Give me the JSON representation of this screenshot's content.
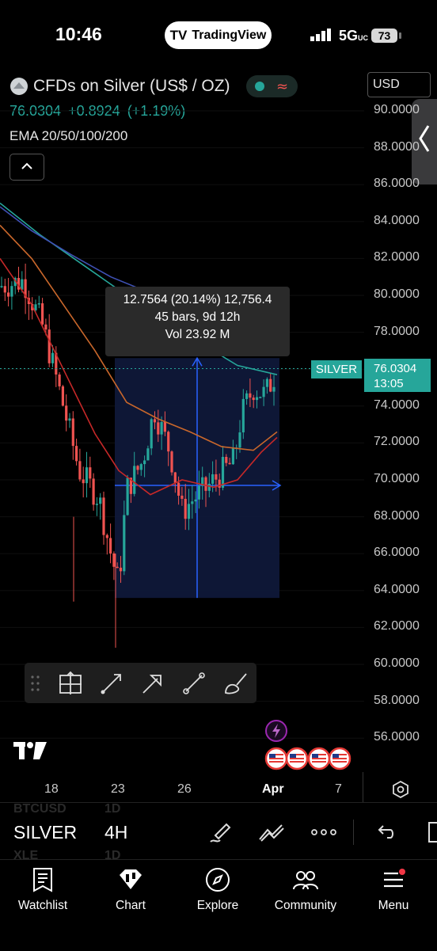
{
  "status_bar": {
    "time": "10:46",
    "network": "5G",
    "network_suffix": "UC",
    "battery": "73",
    "app_pill": "TradingView"
  },
  "header": {
    "symbol_title": "CFDs on Silver (US$ / OZ)",
    "last_price": "76.0304",
    "change": "+0.8924",
    "change_pct": "(+1.19%)",
    "indicator": "EMA 20/50/100/200",
    "currency": "USD"
  },
  "price_axis": {
    "ticks": [
      "90.0000",
      "88.0000",
      "86.0000",
      "84.0000",
      "82.0000",
      "80.0000",
      "78.0000",
      "76.0000",
      "74.0000",
      "72.0000",
      "70.0000",
      "68.0000",
      "66.0000",
      "64.0000",
      "62.0000",
      "60.0000",
      "58.0000",
      "56.0000"
    ],
    "last_label": "SILVER",
    "last_value": "76.0304",
    "countdown": "13:05"
  },
  "measure": {
    "line1": "12.7564 (20.14%) 12,756.4",
    "line2": "45 bars, 9d 12h",
    "line3": "Vol 23.92 M"
  },
  "time_axis": {
    "ticks": [
      "18",
      "23",
      "26",
      "Apr",
      "7"
    ]
  },
  "symbol_bar": {
    "symbol": "SILVER",
    "timeframe": "4H",
    "ghost_top": "BTCUSD",
    "ghost_top_tf": "1D",
    "ghost_bottom": "XLE",
    "ghost_bottom_tf": "1D"
  },
  "nav": {
    "watchlist": "Watchlist",
    "chart": "Chart",
    "explore": "Explore",
    "community": "Community",
    "menu": "Menu"
  },
  "colors": {
    "up": "#26a69a",
    "down": "#ef5350",
    "accent_blue": "#2962ff",
    "measure_fill": "#101a3c"
  }
}
